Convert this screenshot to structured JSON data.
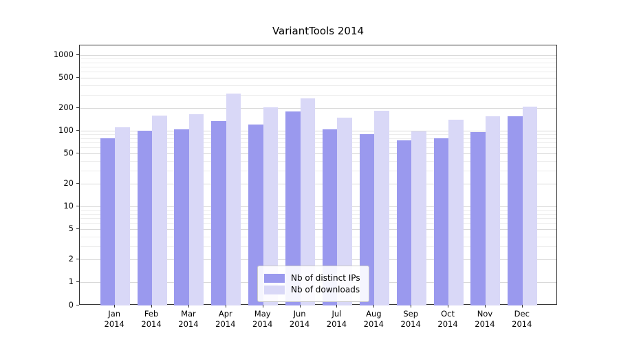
{
  "chart_data": {
    "type": "bar",
    "title": "VariantTools 2014",
    "scale": "symlog",
    "grid": true,
    "legend_position": "lower center",
    "ylim": [
      0,
      1300
    ],
    "yticks": [
      0,
      1,
      2,
      5,
      10,
      20,
      50,
      100,
      200,
      500,
      1000
    ],
    "categories": [
      {
        "month": "Jan",
        "year": "2014"
      },
      {
        "month": "Feb",
        "year": "2014"
      },
      {
        "month": "Mar",
        "year": "2014"
      },
      {
        "month": "Apr",
        "year": "2014"
      },
      {
        "month": "May",
        "year": "2014"
      },
      {
        "month": "Jun",
        "year": "2014"
      },
      {
        "month": "Jul",
        "year": "2014"
      },
      {
        "month": "Aug",
        "year": "2014"
      },
      {
        "month": "Sep",
        "year": "2014"
      },
      {
        "month": "Oct",
        "year": "2014"
      },
      {
        "month": "Nov",
        "year": "2014"
      },
      {
        "month": "Dec",
        "year": "2014"
      }
    ],
    "series": [
      {
        "name": "Nb of distinct IPs",
        "color": "#9a99ee",
        "values": [
          80,
          100,
          105,
          135,
          120,
          180,
          105,
          90,
          75,
          80,
          95,
          155
        ]
      },
      {
        "name": "Nb of downloads",
        "color": "#d9d8f7",
        "values": [
          110,
          160,
          165,
          310,
          205,
          270,
          150,
          185,
          97,
          140,
          155,
          210
        ]
      }
    ]
  }
}
